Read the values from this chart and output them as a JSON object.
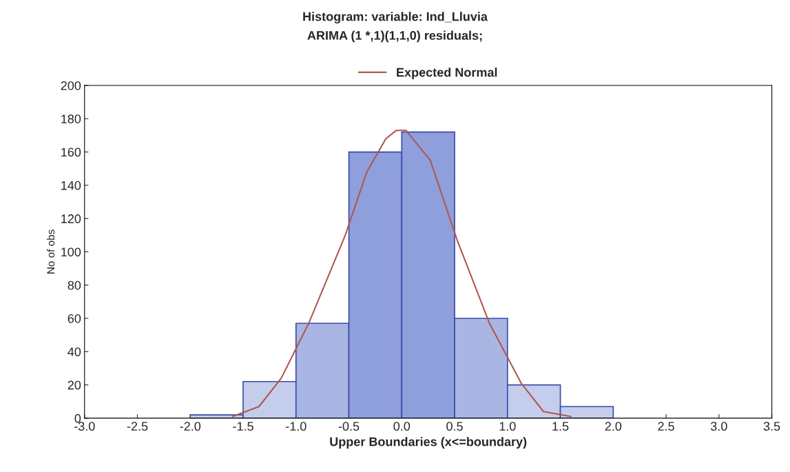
{
  "chart_data": {
    "type": "histogram",
    "title": "Histogram: variable: Ind_Lluvia",
    "subtitle": "ARIMA (1 *,1)(1,1,0) residuals;",
    "xlabel": "Upper Boundaries (x<=boundary)",
    "ylabel": "No of obs",
    "bins": [
      -2.0,
      -1.5,
      -1.0,
      -0.5,
      0.0,
      0.5,
      1.0,
      1.5,
      2.0
    ],
    "values": [
      2,
      22,
      57,
      160,
      172,
      60,
      20,
      7
    ],
    "colors": [
      "#c5cdec",
      "#c5cdec",
      "#a9b5e3",
      "#8f9fdb",
      "#8f9fdb",
      "#a9b5e3",
      "#c5cdec",
      "#c5cdec"
    ],
    "series": [
      {
        "type": "line",
        "name": "Expected Normal",
        "color": "#b0564f",
        "x": [
          -1.6,
          -1.35,
          -1.14,
          -0.88,
          -0.54,
          -0.33,
          -0.15,
          -0.05,
          0.04,
          0.27,
          0.53,
          0.83,
          1.13,
          1.34,
          1.6
        ],
        "values": [
          1,
          7,
          24,
          57,
          109,
          148,
          168,
          173,
          173,
          155,
          106,
          57,
          21,
          4,
          1
        ]
      }
    ],
    "xlim": [
      -3.0,
      3.5
    ],
    "xticks": [
      {
        "value": -3.0,
        "label": "-3.0"
      },
      {
        "value": -2.5,
        "label": "-2.5"
      },
      {
        "value": -2.0,
        "label": "-2.0"
      },
      {
        "value": -1.5,
        "label": "-1.5"
      },
      {
        "value": -1.0,
        "label": "-1.0"
      },
      {
        "value": -0.5,
        "label": "-0.5"
      },
      {
        "value": 0.0,
        "label": "0.0"
      },
      {
        "value": 0.5,
        "label": "0.5"
      },
      {
        "value": 1.0,
        "label": "1.0"
      },
      {
        "value": 1.5,
        "label": "1.5"
      },
      {
        "value": 2.0,
        "label": "2.0"
      },
      {
        "value": 2.5,
        "label": "2.5"
      },
      {
        "value": 3.0,
        "label": "3.0"
      },
      {
        "value": 3.5,
        "label": "3.5"
      }
    ],
    "ylim": [
      0,
      200
    ],
    "yticks": [
      0,
      20,
      40,
      60,
      80,
      100,
      120,
      140,
      160,
      180,
      200
    ],
    "grid": false,
    "legend": "top"
  }
}
